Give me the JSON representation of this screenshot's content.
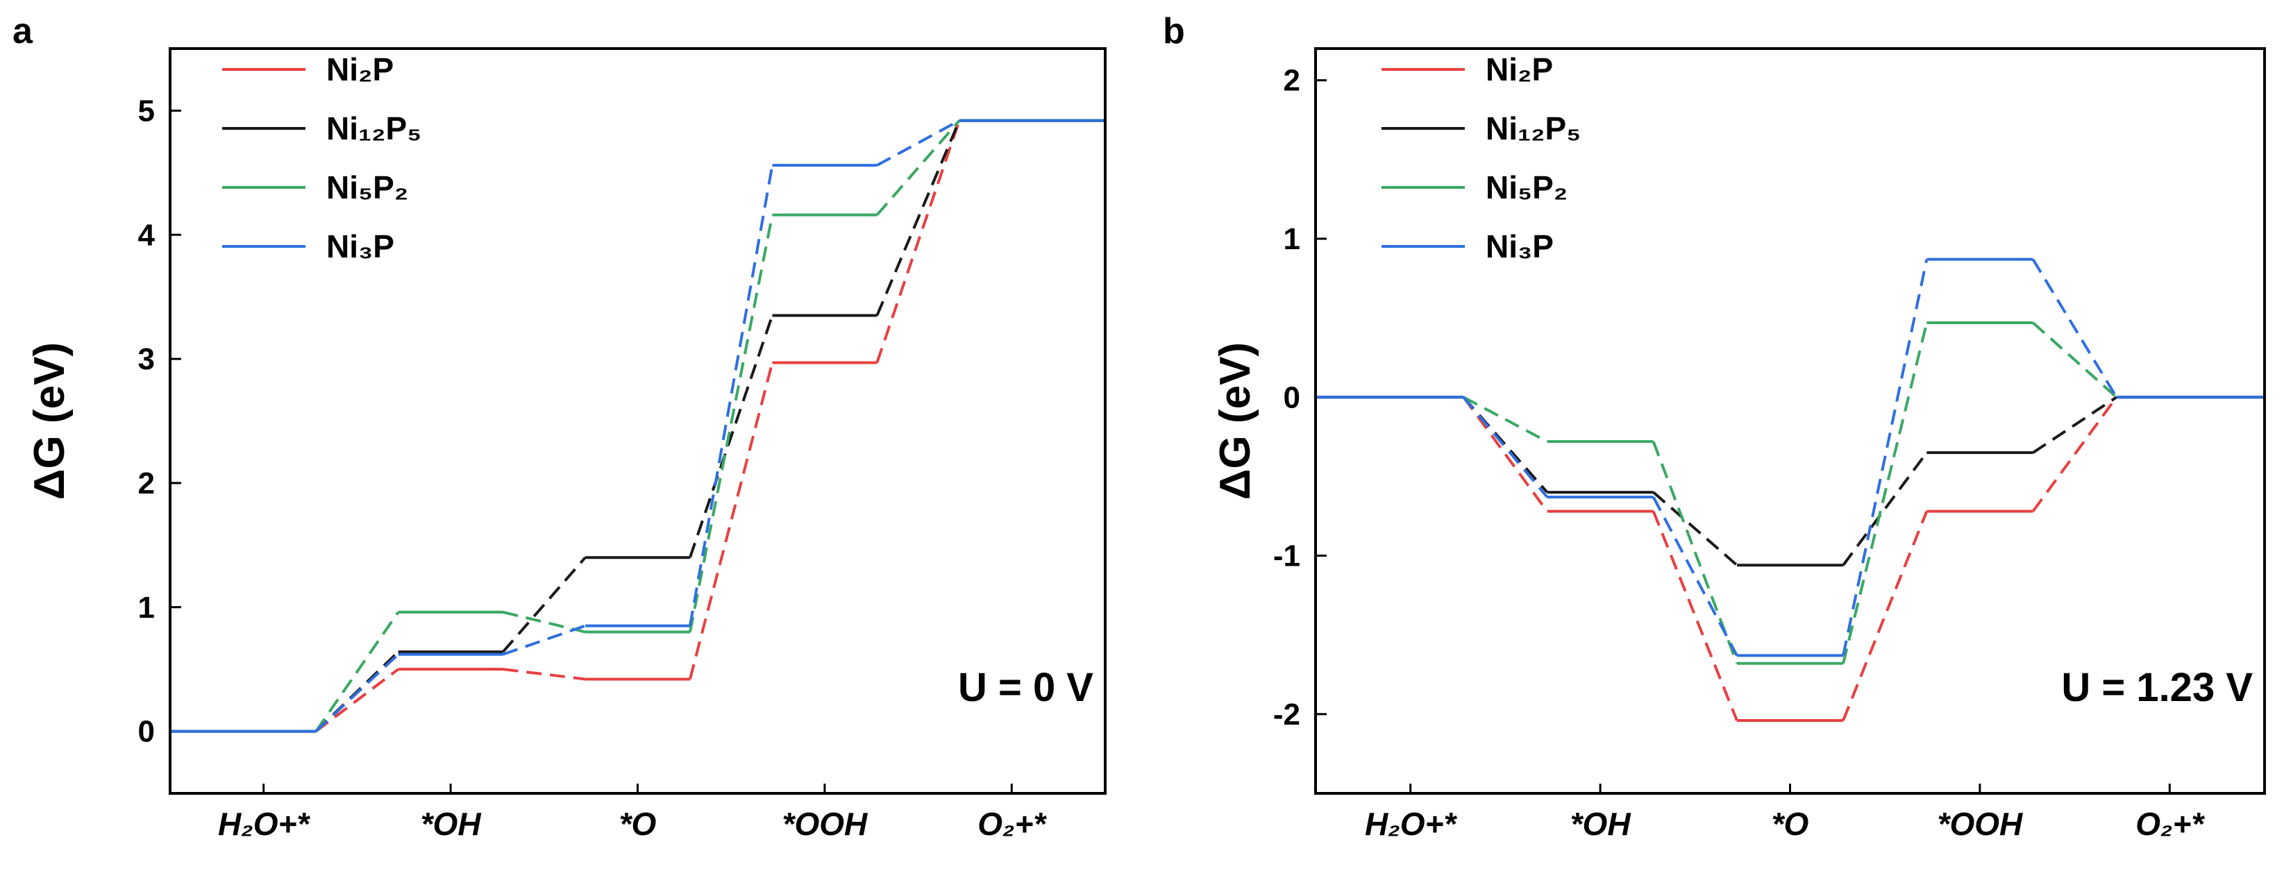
{
  "chart_data": [
    {
      "panel_label": "a",
      "type": "line",
      "title": "",
      "xlabel": "",
      "ylabel": "ΔG (eV)",
      "ylim": [
        -0.5,
        5.5
      ],
      "yticks": [
        "0",
        "1",
        "2",
        "3",
        "4",
        "5"
      ],
      "categories": [
        "H₂O+*",
        "*OH",
        "*O",
        "*OOH",
        "O₂+*"
      ],
      "annotation": "U = 0 V",
      "series": [
        {
          "name": "Ni₂P",
          "color": "#e84040",
          "values": [
            0,
            0.5,
            0.42,
            2.97,
            4.92
          ]
        },
        {
          "name": "Ni₁₂P₅",
          "color": "#1a1a1a",
          "values": [
            0,
            0.64,
            1.4,
            3.35,
            4.92
          ]
        },
        {
          "name": "Ni₅P₂",
          "color": "#3aa864",
          "values": [
            0,
            0.96,
            0.8,
            4.16,
            4.92
          ]
        },
        {
          "name": "Ni₃P",
          "color": "#2f6fe0",
          "values": [
            0,
            0.62,
            0.85,
            4.56,
            4.92
          ]
        }
      ]
    },
    {
      "panel_label": "b",
      "type": "line",
      "title": "",
      "xlabel": "",
      "ylabel": "ΔG (eV)",
      "ylim": [
        -2.5,
        2.2
      ],
      "yticks": [
        "-2",
        "-1",
        "0",
        "1",
        "2"
      ],
      "categories": [
        "H₂O+*",
        "*OH",
        "*O",
        "*OOH",
        "O₂+*"
      ],
      "annotation": "U = 1.23 V",
      "series": [
        {
          "name": "Ni₂P",
          "color": "#e84040",
          "values": [
            0,
            -0.72,
            -2.04,
            -0.72,
            0
          ]
        },
        {
          "name": "Ni₁₂P₅",
          "color": "#1a1a1a",
          "values": [
            0,
            -0.6,
            -1.06,
            -0.35,
            0
          ]
        },
        {
          "name": "Ni₅P₂",
          "color": "#3aa864",
          "values": [
            0,
            -0.28,
            -1.68,
            0.47,
            0
          ]
        },
        {
          "name": "Ni₃P",
          "color": "#2f6fe0",
          "values": [
            0,
            -0.63,
            -1.63,
            0.87,
            0
          ]
        }
      ]
    }
  ]
}
